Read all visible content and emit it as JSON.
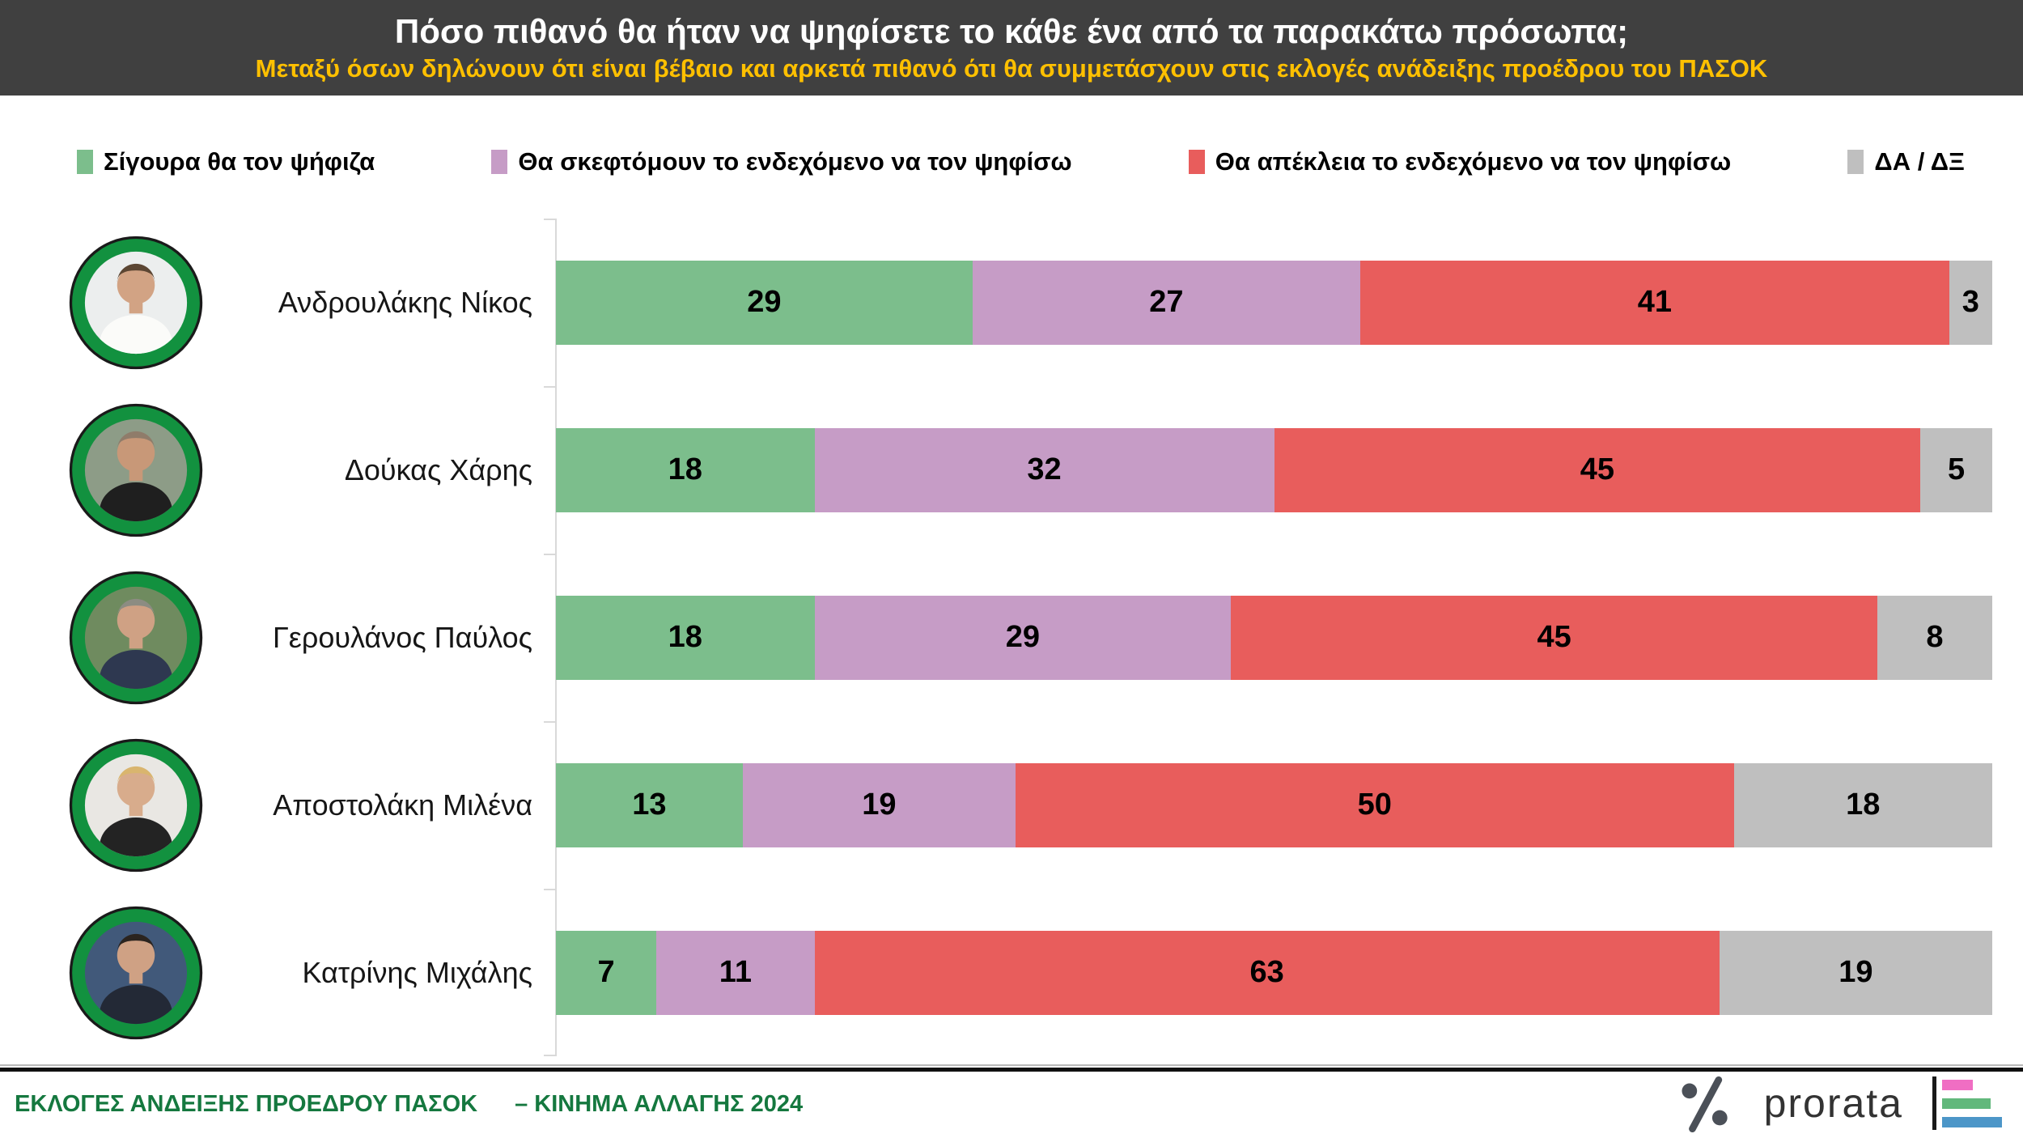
{
  "header": {
    "title": "Πόσο πιθανό θα ήταν να ψηφίσετε το κάθε ένα από τα παρακάτω πρόσωπα;",
    "subtitle": "Μεταξύ όσων δηλώνουν ότι είναι βέβαιο και αρκετά πιθανό ότι θα συμμετάσχουν στις εκλογές ανάδειξης προέδρου του ΠΑΣΟΚ"
  },
  "legend": {
    "items": [
      {
        "label": "Σίγουρα θα τον ψήφιζα",
        "color": "#7CBE8C"
      },
      {
        "label": "Θα σκεφτόμουν το ενδεχόμενο να τον ψηφίσω",
        "color": "#C69CC6"
      },
      {
        "label": "Θα απέκλεια το ενδεχόμενο να τον ψηφίσω",
        "color": "#E85D5C"
      },
      {
        "label": "ΔΑ / ΔΞ",
        "color": "#BFBFBF"
      }
    ]
  },
  "chart_data": {
    "type": "bar",
    "orientation": "horizontal",
    "stacked": true,
    "unit": "percent",
    "xlim": [
      0,
      100
    ],
    "grid": false,
    "legend_position": "top",
    "categories": [
      "Ανδρουλάκης Νίκος",
      "Δούκας Χάρης",
      "Γερουλάνος Παύλος",
      "Αποστολάκη Μιλένα",
      "Κατρίνης Μιχάλης"
    ],
    "series": [
      {
        "name": "Σίγουρα θα τον ψήφιζα",
        "color": "#7CBE8C",
        "values": [
          29,
          18,
          18,
          13,
          7
        ]
      },
      {
        "name": "Θα σκεφτόμουν το ενδεχόμενο να τον ψηφίσω",
        "color": "#C69CC6",
        "values": [
          27,
          32,
          29,
          19,
          11
        ]
      },
      {
        "name": "Θα απέκλεια το ενδεχόμενο να τον ψηφίσω",
        "color": "#E85D5C",
        "values": [
          41,
          45,
          45,
          50,
          63
        ]
      },
      {
        "name": "ΔΑ / ΔΞ",
        "color": "#BFBFBF",
        "values": [
          3,
          5,
          8,
          18,
          19
        ]
      }
    ]
  },
  "avatars": [
    {
      "bg": "#ECEEEE",
      "skin": "#D2A384",
      "hair": "#5C4633",
      "shirt": "#FBFBF9"
    },
    {
      "bg": "#8D9C87",
      "skin": "#C89878",
      "hair": "#8F7C6A",
      "shirt": "#1F1F1F"
    },
    {
      "bg": "#6F8B5F",
      "skin": "#CFA184",
      "hair": "#8C8C82",
      "shirt": "#2E3850"
    },
    {
      "bg": "#E9E7E3",
      "skin": "#D8AC8C",
      "hair": "#D9B56E",
      "shirt": "#232323"
    },
    {
      "bg": "#41597A",
      "skin": "#CFA184",
      "hair": "#2B241F",
      "shirt": "#232936"
    }
  ],
  "footer": {
    "left_text": "ΕΚΛΟΓΕΣ ΑΝΔΕΙΞΗΣ ΠΡΟΕΔΡΟΥ ΠΑΣΟΚ",
    "right_text": "– ΚΙΝΗΜΑ ΑΛΛΑΓΗΣ 2024",
    "brand_name": "prorata"
  },
  "colors": {
    "header_bg": "#404040",
    "title": "#FFFFFF",
    "subtitle": "#FFC000",
    "footer_text": "#15783F",
    "avatar_ring": "#12913F",
    "avatar_outline": "#1A1A1A",
    "axis": "#D9D9D9",
    "percent_glyph": "#4B5058",
    "brand_text": "#333333",
    "logo_bars": {
      "pink": "#F06EC3",
      "green": "#62B87C",
      "blue": "#4C96C8",
      "stem": "#1A1A1A"
    }
  }
}
